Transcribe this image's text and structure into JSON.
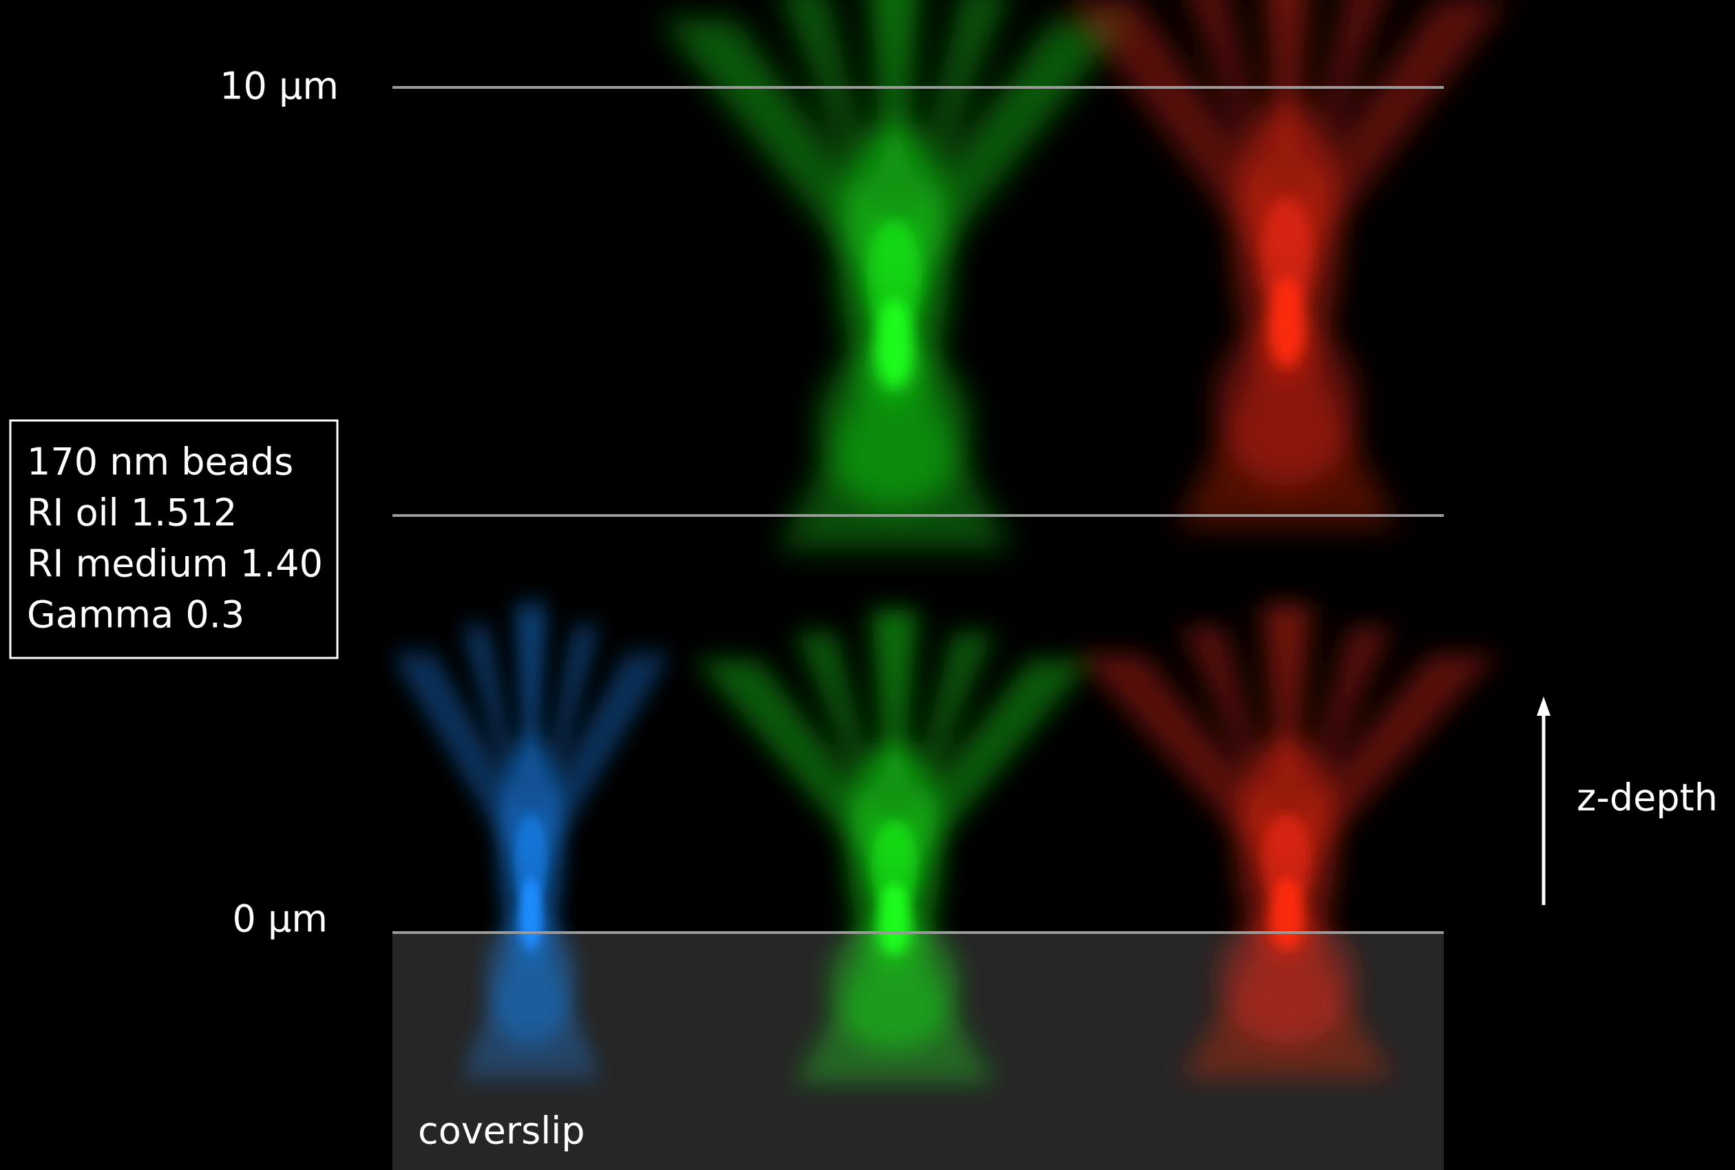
{
  "depth_labels": {
    "top": "10 µm",
    "bottom": "0 µm"
  },
  "info_box": {
    "lines": [
      "170 nm beads",
      "RI oil 1.512",
      "RI medium 1.40",
      "Gamma 0.3"
    ]
  },
  "axis_label": "z-depth",
  "coverslip_label": "coverslip"
}
